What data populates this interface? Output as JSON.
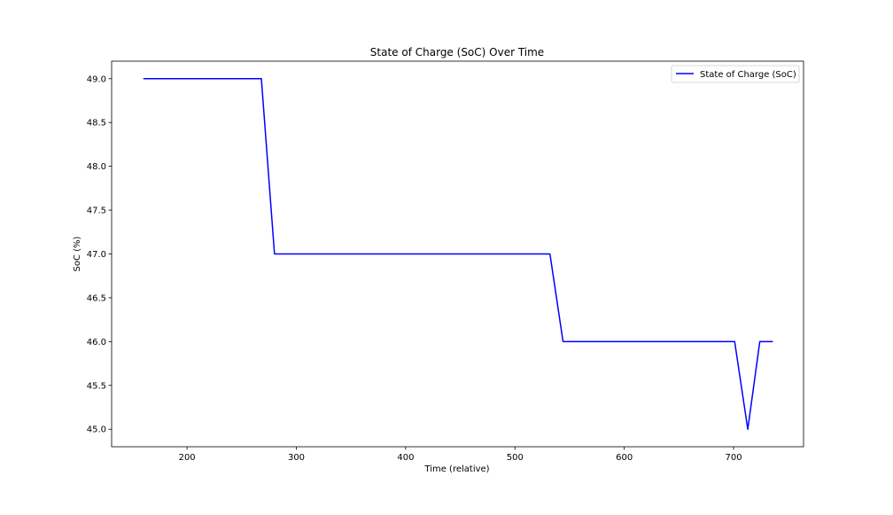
{
  "chart_data": {
    "type": "line",
    "title": "State of Charge (SoC) Over Time",
    "xlabel": "Time (relative)",
    "ylabel": "SoC (%)",
    "xlim": [
      131,
      764
    ],
    "ylim": [
      44.8,
      49.2
    ],
    "xticks": [
      200,
      300,
      400,
      500,
      600,
      700
    ],
    "yticks": [
      45.0,
      45.5,
      46.0,
      46.5,
      47.0,
      47.5,
      48.0,
      48.5,
      49.0
    ],
    "grid": false,
    "legend_position": "top-right",
    "colors": {
      "line": "#0000ff"
    },
    "series": [
      {
        "name": "State of Charge (SoC)",
        "x": [
          160,
          268,
          280,
          532,
          544,
          701,
          713,
          724,
          736
        ],
        "y": [
          49,
          49,
          47,
          47,
          46,
          46,
          45,
          46,
          46
        ]
      }
    ]
  }
}
